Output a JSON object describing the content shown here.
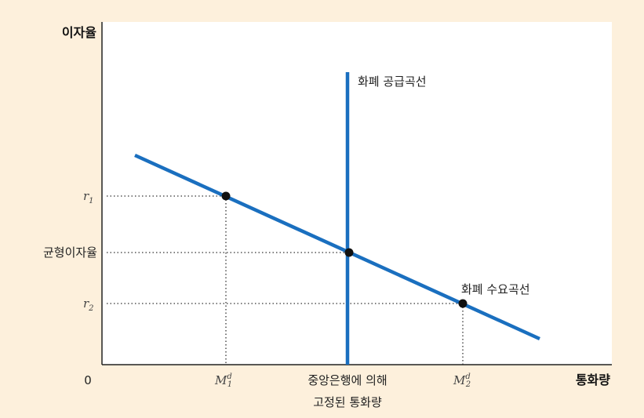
{
  "axes": {
    "y_title": "이자율",
    "x_title": "통화량",
    "origin": "0"
  },
  "y_ticks": {
    "r1": {
      "base": "r",
      "sub": "1"
    },
    "equilibrium": "균형이자율",
    "r2": {
      "base": "r",
      "sub": "2"
    }
  },
  "x_ticks": {
    "m1": {
      "base": "M",
      "sup": "d",
      "sub": "1"
    },
    "fixed_line1": "중앙은행에 의해",
    "fixed_line2": "고정된 통화량",
    "m2": {
      "base": "M",
      "sup": "d",
      "sub": "2"
    }
  },
  "curves": {
    "supply_label": "화폐 공급곡선",
    "demand_label": "화폐 수요곡선"
  },
  "colors": {
    "background": "#fdf0dc",
    "panel": "#ffffff",
    "curve": "#1a6fbf",
    "point": "#111111",
    "guide": "#333333"
  },
  "chart_data": {
    "type": "line",
    "series": [
      {
        "values": [
          [
            1.15,
            2.25
          ],
          [
            4.2,
            0.7
          ]
        ]
      },
      {
        "values": [
          [
            2.75,
            0
          ],
          [
            2.75,
            3.5
          ]
        ]
      }
    ],
    "points": [
      {
        "x": 1.75,
        "y": 1.9,
        "label": "M1 / r1"
      },
      {
        "x": 2.75,
        "y": 1.4,
        "label": "equilibrium"
      },
      {
        "x": 3.72,
        "y": 0.9,
        "label": "M2 / r2"
      }
    ]
  }
}
